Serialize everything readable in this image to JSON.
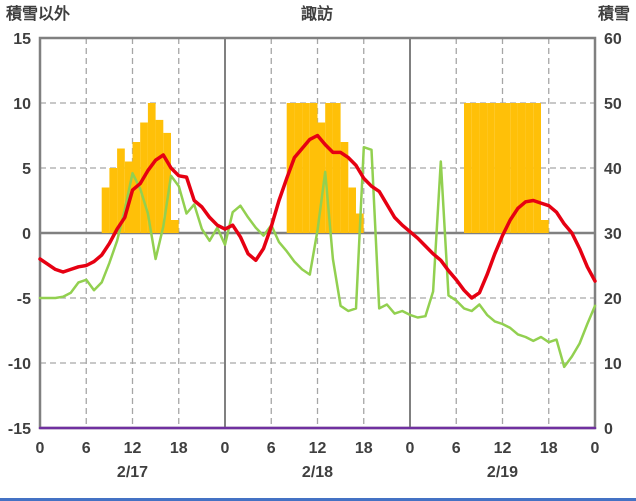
{
  "header": {
    "left_axis_label": "積雪以外",
    "title": "諏訪",
    "right_axis_label": "積雪"
  },
  "colors": {
    "bars": "#FFC008",
    "red_line": "#E60012",
    "green_line": "#92D050",
    "purple_line": "#7030A0",
    "axis": "#808080",
    "grid": "#A6A6A6",
    "text": "#3F3F3F",
    "bottom_accent": "#4472C4"
  },
  "chart_data": {
    "type": "mixed",
    "title": "諏訪",
    "left_axis": {
      "label": "積雪以外",
      "min": -15,
      "max": 15,
      "ticks": [
        15,
        10,
        5,
        0,
        -5,
        -10,
        -15
      ]
    },
    "right_axis": {
      "label": "積雪",
      "min": 0,
      "max": 60,
      "ticks": [
        60,
        50,
        40,
        30,
        20,
        10,
        0
      ]
    },
    "x_axis": {
      "hours_total": 72,
      "tick_interval": 6,
      "tick_labels": [
        "0",
        "6",
        "12",
        "18",
        "0",
        "6",
        "12",
        "18",
        "0",
        "6",
        "12",
        "18",
        "0"
      ],
      "date_labels": [
        "2/17",
        "2/18",
        "2/19"
      ],
      "grid": "dashed-6h-solid-24h"
    },
    "series": [
      {
        "name": "bars-orange",
        "type": "bar",
        "axis": "left",
        "color": "#FFC008",
        "points": [
          [
            8,
            3.5
          ],
          [
            9,
            5
          ],
          [
            10,
            6.5
          ],
          [
            11,
            5.5
          ],
          [
            12,
            7
          ],
          [
            13,
            8.5
          ],
          [
            14,
            10
          ],
          [
            15,
            8.7
          ],
          [
            16,
            7.7
          ],
          [
            17,
            1
          ],
          [
            32,
            10
          ],
          [
            33,
            10
          ],
          [
            34,
            10
          ],
          [
            35,
            10
          ],
          [
            36,
            8.5
          ],
          [
            37,
            10
          ],
          [
            38,
            10
          ],
          [
            39,
            7
          ],
          [
            40,
            3.5
          ],
          [
            41,
            1.5
          ],
          [
            55,
            10
          ],
          [
            56,
            10
          ],
          [
            57,
            10
          ],
          [
            58,
            10
          ],
          [
            59,
            10
          ],
          [
            60,
            10
          ],
          [
            61,
            10
          ],
          [
            62,
            10
          ],
          [
            63,
            10
          ],
          [
            64,
            10
          ],
          [
            65,
            1
          ]
        ]
      },
      {
        "name": "line-green",
        "type": "line",
        "axis": "left",
        "color": "#92D050",
        "width": 2.5,
        "values": [
          -5,
          -5,
          -5,
          -4.9,
          -4.6,
          -3.8,
          -3.6,
          -4.4,
          -3.8,
          -2.3,
          -0.6,
          1.8,
          4.6,
          3.4,
          1.5,
          -2,
          0.5,
          4.4,
          3.6,
          1.5,
          2.2,
          0.3,
          -0.6,
          0.4,
          -0.9,
          1.6,
          2.1,
          1.2,
          0.4,
          -0.2,
          0.6,
          -0.7,
          -1.4,
          -2.2,
          -2.8,
          -3.2,
          0.2,
          4.7,
          -2,
          -5.6,
          -6,
          -5.8,
          6.6,
          6.4,
          -5.8,
          -5.5,
          -6.2,
          -6,
          -6.3,
          -6.5,
          -6.4,
          -4.5,
          5.5,
          -4.8,
          -5.2,
          -5.8,
          -6,
          -5.5,
          -6.3,
          -6.8,
          -7,
          -7.3,
          -7.8,
          -8,
          -8.3,
          -8,
          -8.4,
          -8.2,
          -10.3,
          -9.5,
          -8.5,
          -7,
          -5.6
        ]
      },
      {
        "name": "line-red",
        "type": "line",
        "axis": "left",
        "color": "#E60012",
        "width": 3.5,
        "values": [
          -2,
          -2.4,
          -2.8,
          -3,
          -2.8,
          -2.6,
          -2.5,
          -2.2,
          -1.7,
          -0.8,
          0.3,
          1.2,
          3.3,
          3.8,
          4.8,
          5.6,
          6,
          5,
          4.4,
          4.3,
          2.5,
          2,
          1.2,
          0.6,
          0.3,
          0.6,
          -0.3,
          -1.6,
          -2.1,
          -1.2,
          0.5,
          2.5,
          4.2,
          5.8,
          6.5,
          7.2,
          7.5,
          6.8,
          6.2,
          6.2,
          5.8,
          5.2,
          4.2,
          3.6,
          3.2,
          2.2,
          1.2,
          0.6,
          0.1,
          -0.4,
          -1,
          -1.6,
          -2.1,
          -2.9,
          -3.6,
          -4.4,
          -5,
          -4.6,
          -3.2,
          -1.6,
          -0.2,
          1,
          1.9,
          2.4,
          2.5,
          2.3,
          2.1,
          1.6,
          0.7,
          0,
          -1.2,
          -2.6,
          -3.7
        ]
      },
      {
        "name": "line-purple",
        "type": "line",
        "axis": "right",
        "color": "#7030A0",
        "width": 2.5,
        "x": [
          0,
          72
        ],
        "values": [
          0,
          0
        ]
      }
    ]
  }
}
